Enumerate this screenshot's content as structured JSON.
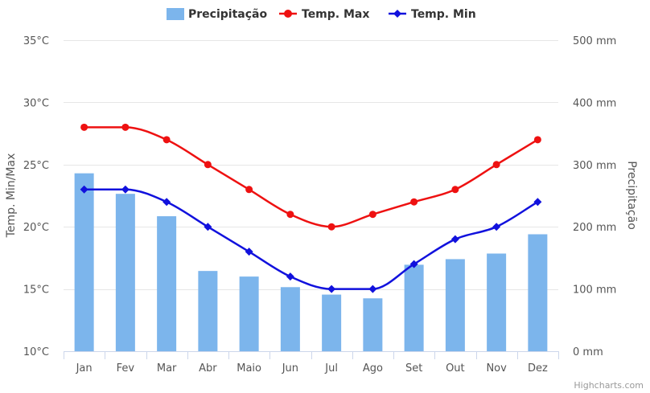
{
  "chart_data": {
    "type": "bar+line",
    "categories": [
      "Jan",
      "Fev",
      "Mar",
      "Abr",
      "Maio",
      "Jun",
      "Jul",
      "Ago",
      "Set",
      "Out",
      "Nov",
      "Dez"
    ],
    "series": [
      {
        "name": "Precipitação",
        "type": "bar",
        "axis": "right",
        "color": "#7cb5ec",
        "values": [
          286,
          253,
          217,
          129,
          120,
          103,
          91,
          85,
          139,
          148,
          157,
          188
        ]
      },
      {
        "name": "Temp. Max",
        "type": "line",
        "axis": "left",
        "color": "#ee1111",
        "marker": "circle",
        "values": [
          28,
          28,
          27,
          25,
          23,
          21,
          20,
          21,
          22,
          23,
          25,
          27
        ]
      },
      {
        "name": "Temp. Min",
        "type": "line",
        "axis": "left",
        "color": "#1111dd",
        "marker": "diamond",
        "values": [
          23,
          23,
          22,
          20,
          18,
          16,
          15,
          15,
          17,
          19,
          20,
          22
        ]
      }
    ],
    "left_axis": {
      "title": "Temp. Min/Max",
      "range": [
        10,
        35
      ],
      "ticks": [
        10,
        15,
        20,
        25,
        30,
        35
      ],
      "tick_labels": [
        "10°C",
        "15°C",
        "20°C",
        "25°C",
        "30°C",
        "35°C"
      ]
    },
    "right_axis": {
      "title": "Precipitação",
      "range": [
        0,
        500
      ],
      "ticks": [
        0,
        100,
        200,
        300,
        400,
        500
      ],
      "tick_labels": [
        "0 mm",
        "100 mm",
        "200 mm",
        "300 mm",
        "400 mm",
        "500 mm"
      ]
    },
    "legend": {
      "position": "top-center",
      "items": [
        "Precipitação",
        "Temp. Max",
        "Temp. Min"
      ]
    },
    "grid": true
  },
  "credits": "Highcharts.com"
}
